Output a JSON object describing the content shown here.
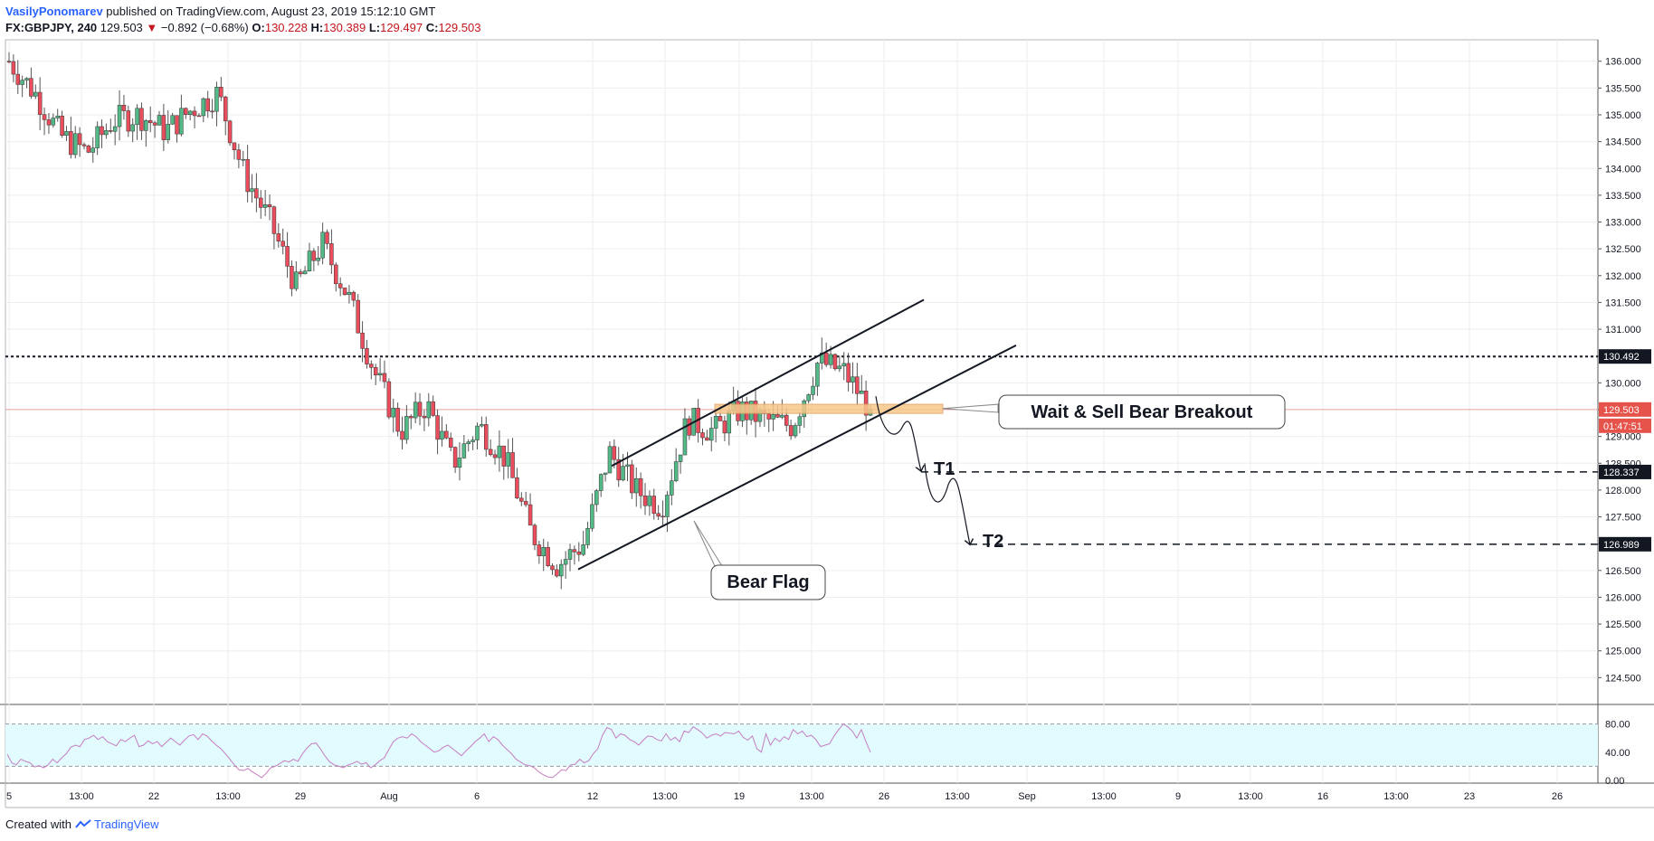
{
  "header": {
    "author": "VasilyPonomarev",
    "published": "published on TradingView.com, August 23, 2019 15:12:10 GMT",
    "symbol": "FX:GBPJPY, 240",
    "last": "129.503",
    "change_arrow": "▼",
    "change": "−0.892 (−0.68%)",
    "o_label": "O:",
    "o": "130.228",
    "h_label": "H:",
    "h": "130.389",
    "l_label": "L:",
    "l": "129.497",
    "c_label": "C:",
    "c": "129.503"
  },
  "footer": {
    "created": "Created with",
    "brand": "TradingView"
  },
  "colors": {
    "up": "#53b987",
    "down": "#eb4d5c",
    "wick": "#555555",
    "rsi_line": "#c77dc0",
    "rsi_band": "#e1fbff",
    "zone": "#f7c88b",
    "price_label_bg": "#131722",
    "last_price_bg": "#e5534b",
    "grid": "#eeeeee"
  },
  "chart_data": {
    "type": "candlestick",
    "symbol": "GBPJPY",
    "timeframe": "240",
    "ylim": [
      124.0,
      136.4
    ],
    "y_ticks": [
      "136.000",
      "135.500",
      "135.000",
      "134.500",
      "134.000",
      "133.500",
      "133.000",
      "132.500",
      "132.000",
      "131.500",
      "131.000",
      "130.500",
      "130.000",
      "129.500",
      "129.000",
      "128.500",
      "128.000",
      "127.500",
      "127.000",
      "126.500",
      "126.000",
      "125.500",
      "125.000",
      "124.500"
    ],
    "x_ticks": [
      "5",
      "13:00",
      "22",
      "13:00",
      "29",
      "Aug",
      "6",
      "12",
      "13:00",
      "19",
      "13:00",
      "26",
      "13:00",
      "Sep",
      "13:00",
      "9",
      "13:00",
      "16",
      "13:00",
      "23",
      "26"
    ],
    "key_points": [
      136.0,
      135.4,
      134.6,
      134.3,
      134.9,
      135.0,
      134.7,
      135.1,
      135.4,
      133.9,
      133.0,
      131.8,
      132.6,
      131.6,
      130.2,
      129.1,
      129.6,
      128.5,
      129.2,
      128.6,
      127.2,
      126.6,
      127.0,
      128.7,
      128.0,
      127.7,
      129.3,
      129.1,
      129.5,
      129.3,
      129.2,
      130.4,
      130.2,
      129.5
    ],
    "price_labels": [
      {
        "value": "130.492",
        "style": "dark"
      },
      {
        "value": "129.503",
        "style": "last"
      },
      {
        "value": "01:47:51",
        "style": "timer"
      },
      {
        "value": "128.337",
        "style": "dark"
      },
      {
        "value": "126.989",
        "style": "dark"
      }
    ],
    "levels": [
      {
        "name": "resistance",
        "price": 130.492,
        "style": "dotted"
      },
      {
        "name": "target-1",
        "price": 128.337,
        "style": "dashed"
      },
      {
        "name": "target-2",
        "price": 126.989,
        "style": "dashed"
      }
    ],
    "annotations": [
      {
        "text": "Wait & Sell Bear Breakout"
      },
      {
        "text": "Bear Flag"
      },
      {
        "text": "T1"
      },
      {
        "text": "T2"
      }
    ],
    "rsi": {
      "ylim": [
        0,
        100
      ],
      "levels": [
        80,
        20
      ],
      "y_ticks": [
        "80.00",
        "40.00",
        "0.00"
      ],
      "values": [
        37,
        25,
        22,
        30,
        27,
        25,
        19,
        21,
        18,
        22,
        30,
        25,
        32,
        38,
        47,
        50,
        48,
        58,
        60,
        64,
        58,
        62,
        55,
        52,
        49,
        58,
        55,
        60,
        64,
        48,
        50,
        56,
        52,
        55,
        48,
        54,
        60,
        55,
        50,
        57,
        63,
        65,
        58,
        66,
        63,
        56,
        50,
        45,
        38,
        30,
        22,
        15,
        14,
        17,
        12,
        8,
        4,
        10,
        18,
        20,
        24,
        28,
        26,
        30,
        27,
        38,
        46,
        52,
        53,
        44,
        34,
        26,
        22,
        20,
        18,
        22,
        24,
        27,
        23,
        25,
        18,
        22,
        28,
        32,
        44,
        55,
        60,
        62,
        60,
        66,
        62,
        55,
        50,
        45,
        40,
        42,
        47,
        50,
        45,
        40,
        35,
        42,
        48,
        55,
        60,
        66,
        55,
        62,
        58,
        50,
        44,
        38,
        30,
        26,
        22,
        21,
        18,
        12,
        8,
        5,
        4,
        9,
        15,
        14,
        22,
        23,
        30,
        25,
        28,
        38,
        45,
        64,
        75,
        72,
        60,
        66,
        64,
        58,
        55,
        50,
        57,
        63,
        62,
        58,
        56,
        66,
        57,
        61,
        55,
        70,
        68,
        76,
        72,
        67,
        60,
        64,
        66,
        63,
        68,
        67,
        66,
        70,
        61,
        57,
        63,
        45,
        40,
        66,
        50,
        60,
        55,
        62,
        58,
        72,
        66,
        70,
        62,
        64,
        58,
        48,
        50,
        52,
        63,
        72,
        80,
        76,
        70,
        60,
        72,
        55,
        40
      ]
    }
  }
}
